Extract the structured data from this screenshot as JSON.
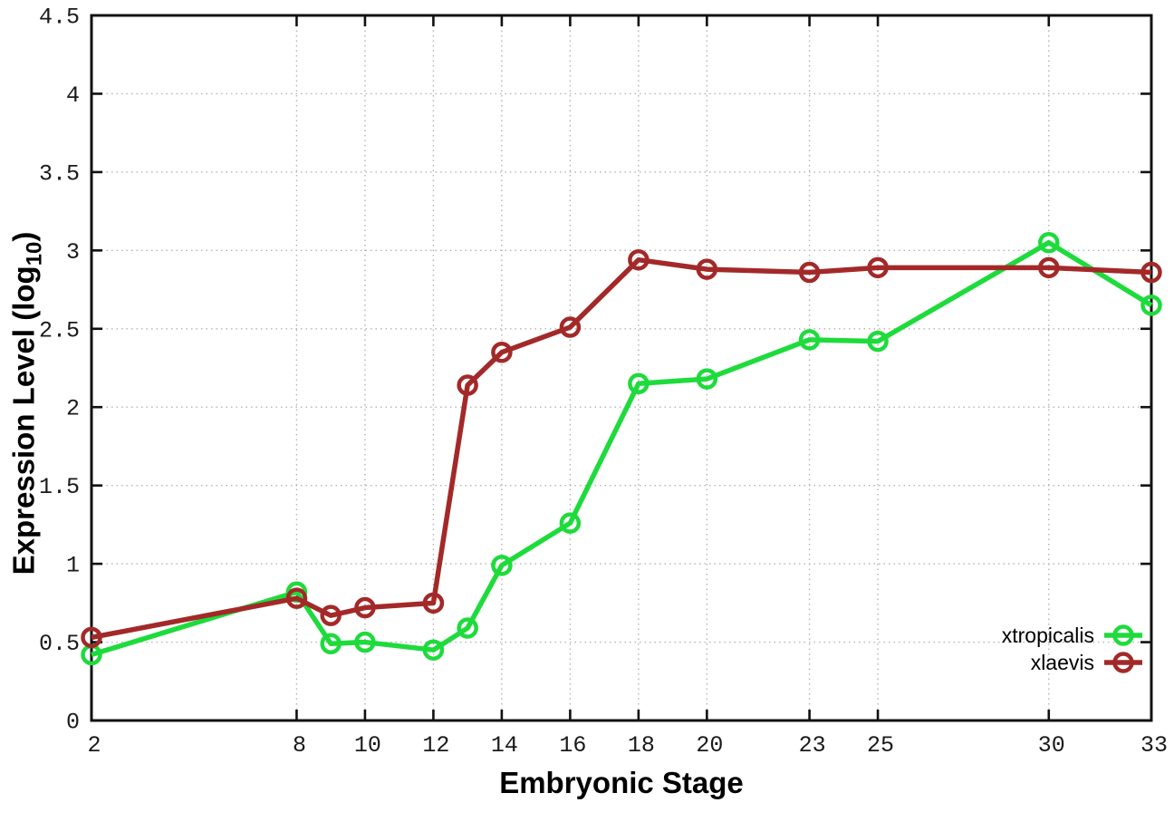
{
  "figure": {
    "background": "#ffffff",
    "border_color": "#111111",
    "grid_color": "#b3b3b3",
    "tick_label_color": "#1a1a1a"
  },
  "chart_data": {
    "type": "line",
    "title": "",
    "xlabel": "Embryonic Stage",
    "ylabel": "Expression Level (log10)",
    "ylabel_parts": {
      "prefix": "Expression Level (log",
      "sub": "10",
      "suffix": ")"
    },
    "xlim": [
      2,
      33
    ],
    "ylim": [
      0,
      4.5
    ],
    "grid": true,
    "legend_position": "bottom-right-inside",
    "x": [
      2,
      8,
      9,
      10,
      12,
      13,
      14,
      16,
      18,
      20,
      23,
      25,
      30,
      33
    ],
    "x_tick_values": [
      2,
      8,
      10,
      12,
      14,
      16,
      18,
      20,
      23,
      25,
      30,
      33
    ],
    "x_tick_labels": [
      "2",
      "8",
      "10",
      "12",
      "14",
      "16",
      "18",
      "20",
      "23",
      "25",
      "30",
      "33"
    ],
    "y_tick_values": [
      0,
      0.5,
      1,
      1.5,
      2,
      2.5,
      3,
      3.5,
      4,
      4.5
    ],
    "y_tick_labels": [
      "0",
      "0.5",
      "1",
      "1.5",
      "2",
      "2.5",
      "3",
      "3.5",
      "4",
      "4.5"
    ],
    "series": [
      {
        "name": "xtropicalis",
        "color": "#1edb3c",
        "marker": "open-circle",
        "values": [
          0.42,
          0.82,
          0.49,
          0.5,
          0.45,
          0.59,
          0.99,
          1.26,
          2.15,
          2.18,
          2.43,
          2.42,
          3.05,
          2.65
        ]
      },
      {
        "name": "xlaevis",
        "color": "#a32929",
        "marker": "open-circle",
        "values": [
          0.53,
          0.78,
          0.67,
          0.72,
          0.75,
          2.14,
          2.35,
          2.51,
          2.94,
          2.88,
          2.86,
          2.89,
          2.89,
          2.86
        ]
      }
    ]
  }
}
